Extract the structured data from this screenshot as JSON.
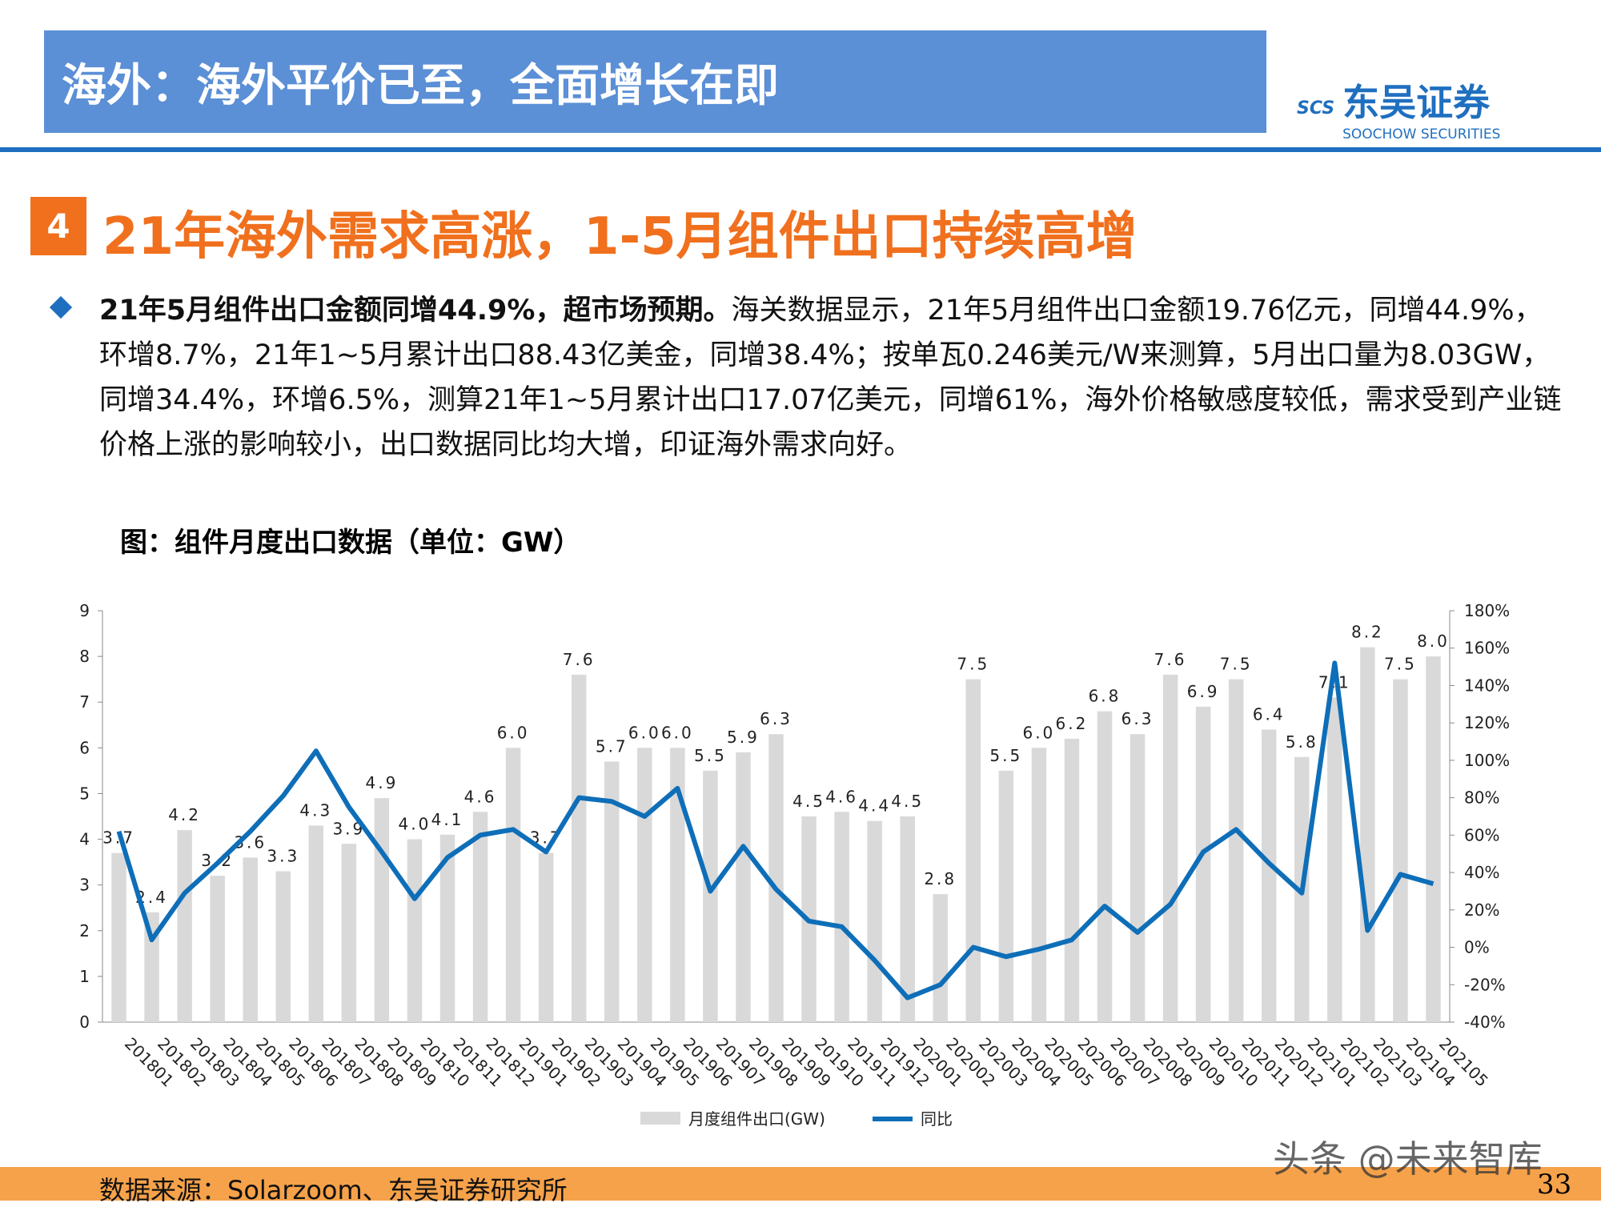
{
  "header": {
    "title": "海外：海外平价已至，全面增长在即",
    "logo_abbr": "SCS",
    "logo_cn": "东吴证券",
    "logo_en": "SOOCHOW SECURITIES"
  },
  "section": {
    "number": "4",
    "title": "21年海外需求高涨，1-5月组件出口持续高增"
  },
  "bullet": {
    "lead": "21年5月组件出口金额同增44.9%，超市场预期。",
    "text": "海关数据显示，21年5月组件出口金额19.76亿元，同增44.9%，环增8.7%，21年1~5月累计出口88.43亿美金，同增38.4%；按单瓦0.246美元/W来测算，5月出口量为8.03GW，同增34.4%，环增6.5%，测算21年1~5月累计出口17.07亿美元，同增61%，海外价格敏感度较低，需求受到产业链价格上涨的影响较小，出口数据同比均大增，印证海外需求向好。"
  },
  "chart_data": {
    "type": "combo",
    "title": "图：组件月度出口数据（单位：GW）",
    "categories": [
      "201801",
      "201802",
      "201803",
      "201804",
      "201805",
      "201806",
      "201807",
      "201808",
      "201809",
      "201810",
      "201811",
      "201812",
      "201901",
      "201902",
      "201903",
      "201904",
      "201905",
      "201906",
      "201907",
      "201908",
      "201909",
      "201910",
      "201911",
      "201912",
      "202001",
      "202002",
      "202003",
      "202004",
      "202005",
      "202006",
      "202007",
      "202008",
      "202009",
      "202010",
      "202011",
      "202012",
      "202101",
      "202102",
      "202103",
      "202104",
      "202105"
    ],
    "series": [
      {
        "name": "月度组件出口(GW)",
        "type": "bar",
        "color": "#d9d9d9",
        "values": [
          3.7,
          2.4,
          4.2,
          3.2,
          3.6,
          3.3,
          4.3,
          3.9,
          4.9,
          4.0,
          4.1,
          4.6,
          6.0,
          3.7,
          7.6,
          5.7,
          6.0,
          6.0,
          5.5,
          5.9,
          6.3,
          4.5,
          4.6,
          4.4,
          4.5,
          2.8,
          7.5,
          5.5,
          6.0,
          6.2,
          6.8,
          6.3,
          7.6,
          6.9,
          7.5,
          6.4,
          5.8,
          7.1,
          8.2,
          7.5,
          8.0
        ],
        "value_labels": [
          "3.7",
          "2.4",
          "4.2",
          "3.2",
          "3.6",
          "3.3",
          "4.3",
          "3.9",
          "4.9",
          "4.0",
          "4.1",
          "4.6",
          "6.0",
          "3.7",
          "7.6",
          "5.7",
          "6.0",
          "6.0",
          "5.5",
          "5.9",
          "6.3",
          "4.5",
          "4.6",
          "4.4",
          "4.5",
          "2.8",
          "7.5",
          "5.5",
          "6.0",
          "6.2",
          "6.8",
          "6.3",
          "7.6",
          "6.9",
          "7.5",
          "6.4",
          "5.8",
          "7.1",
          "8.2",
          "7.5",
          "8.0"
        ]
      },
      {
        "name": "同比",
        "type": "line",
        "axis": "y2",
        "color": "#0e6eb8",
        "values": [
          62,
          4,
          29,
          45,
          62,
          81,
          105,
          75,
          51,
          26,
          48,
          60,
          63,
          51,
          80,
          78,
          70,
          85,
          30,
          54,
          31,
          14,
          11,
          -7,
          -27,
          -20,
          0,
          -5,
          -1,
          4,
          22,
          8,
          23,
          51,
          63,
          45,
          29,
          152,
          9,
          39,
          34
        ]
      }
    ],
    "ylim": [
      0,
      9
    ],
    "yticks": [
      0,
      1,
      2,
      3,
      4,
      5,
      6,
      7,
      8,
      9
    ],
    "y2lim": [
      -40,
      180
    ],
    "y2ticks": [
      {
        "value": -40,
        "label": "-40%"
      },
      {
        "value": -20,
        "label": "-20%"
      },
      {
        "value": 0,
        "label": "0%"
      },
      {
        "value": 20,
        "label": "20%"
      },
      {
        "value": 40,
        "label": "40%"
      },
      {
        "value": 60,
        "label": "60%"
      },
      {
        "value": 80,
        "label": "80%"
      },
      {
        "value": 100,
        "label": "100%"
      },
      {
        "value": 120,
        "label": "120%"
      },
      {
        "value": 140,
        "label": "140%"
      },
      {
        "value": 160,
        "label": "160%"
      },
      {
        "value": 180,
        "label": "180%"
      }
    ]
  },
  "footer": {
    "source": "数据来源：Solarzoom、东吴证券研究所",
    "page": "33",
    "watermark": "头条 @未来智库"
  }
}
